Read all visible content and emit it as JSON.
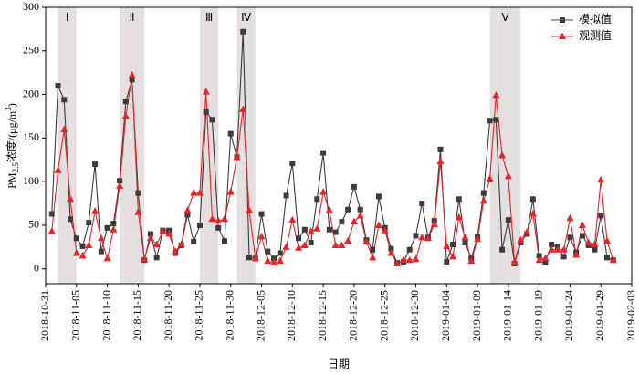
{
  "chart_data": {
    "type": "line",
    "ylabel": {
      "main": "PM",
      "sub": "2.5",
      "rest": "浓度/(μg/m",
      "sup": "3",
      "end": ")"
    },
    "xlabel": "日期",
    "x": [
      "2018-11-01",
      "2018-11-02",
      "2018-11-03",
      "2018-11-04",
      "2018-11-05",
      "2018-11-06",
      "2018-11-07",
      "2018-11-08",
      "2018-11-09",
      "2018-11-10",
      "2018-11-11",
      "2018-11-12",
      "2018-11-13",
      "2018-11-14",
      "2018-11-15",
      "2018-11-16",
      "2018-11-17",
      "2018-11-18",
      "2018-11-19",
      "2018-11-20",
      "2018-11-21",
      "2018-11-22",
      "2018-11-23",
      "2018-11-24",
      "2018-11-25",
      "2018-11-26",
      "2018-11-27",
      "2018-11-28",
      "2018-11-29",
      "2018-11-30",
      "2018-12-01",
      "2018-12-02",
      "2018-12-03",
      "2018-12-04",
      "2018-12-05",
      "2018-12-06",
      "2018-12-07",
      "2018-12-08",
      "2018-12-09",
      "2018-12-10",
      "2018-12-11",
      "2018-12-12",
      "2018-12-13",
      "2018-12-14",
      "2018-12-15",
      "2018-12-16",
      "2018-12-17",
      "2018-12-18",
      "2018-12-19",
      "2018-12-20",
      "2018-12-21",
      "2018-12-22",
      "2018-12-23",
      "2018-12-24",
      "2018-12-25",
      "2018-12-26",
      "2018-12-27",
      "2018-12-28",
      "2018-12-29",
      "2018-12-30",
      "2018-12-31",
      "2019-01-01",
      "2019-01-02",
      "2019-01-03",
      "2019-01-04",
      "2019-01-05",
      "2019-01-06",
      "2019-01-07",
      "2019-01-08",
      "2019-01-09",
      "2019-01-10",
      "2019-01-11",
      "2019-01-12",
      "2019-01-13",
      "2019-01-14",
      "2019-01-15",
      "2019-01-16",
      "2019-01-17",
      "2019-01-18",
      "2019-01-19",
      "2019-01-20",
      "2019-01-21",
      "2019-01-22",
      "2019-01-23",
      "2019-01-24",
      "2019-01-25",
      "2019-01-26",
      "2019-01-27",
      "2019-01-28",
      "2019-01-29",
      "2019-01-30",
      "2019-01-31"
    ],
    "series": [
      {
        "name": "模拟值",
        "color": "#3c3c3c",
        "marker": "square",
        "values": [
          63,
          210,
          194,
          57,
          35,
          26,
          53,
          120,
          20,
          47,
          52,
          101,
          192,
          217,
          87,
          10,
          40,
          13,
          44,
          44,
          18,
          27,
          62,
          31,
          50,
          180,
          171,
          47,
          32,
          155,
          128,
          272,
          13,
          12,
          63,
          20,
          12,
          18,
          84,
          121,
          35,
          45,
          30,
          80,
          133,
          45,
          42,
          54,
          68,
          94,
          68,
          33,
          22,
          83,
          47,
          23,
          7,
          8,
          22,
          38,
          75,
          36,
          55,
          137,
          8,
          28,
          80,
          30,
          12,
          37,
          87,
          170,
          171,
          22,
          56,
          6,
          30,
          40,
          80,
          15,
          8,
          28,
          25,
          14,
          36,
          19,
          38,
          27,
          22,
          61,
          13,
          10
        ]
      },
      {
        "name": "观测值",
        "color": "#e8242b",
        "marker": "triangle",
        "values": [
          43,
          113,
          160,
          80,
          18,
          15,
          27,
          66,
          35,
          12,
          45,
          95,
          175,
          222,
          65,
          11,
          35,
          28,
          43,
          40,
          20,
          28,
          67,
          87,
          87,
          203,
          57,
          55,
          57,
          88,
          128,
          183,
          67,
          12,
          37,
          9,
          7,
          9,
          25,
          56,
          24,
          27,
          43,
          46,
          88,
          67,
          27,
          27,
          32,
          54,
          61,
          31,
          13,
          50,
          44,
          18,
          6,
          10,
          10,
          11,
          36,
          35,
          51,
          123,
          26,
          14,
          59,
          36,
          9,
          34,
          78,
          103,
          199,
          130,
          106,
          8,
          33,
          42,
          63,
          10,
          12,
          22,
          22,
          22,
          58,
          16,
          50,
          30,
          28,
          102,
          32,
          10
        ]
      }
    ],
    "periods": [
      {
        "label": "Ⅰ",
        "start": "2018-11-02",
        "end": "2018-11-05"
      },
      {
        "label": "Ⅱ",
        "start": "2018-11-12",
        "end": "2018-11-16"
      },
      {
        "label": "Ⅲ",
        "start": "2018-11-25",
        "end": "2018-11-28"
      },
      {
        "label": "Ⅳ",
        "start": "2018-12-01",
        "end": "2018-12-04"
      },
      {
        "label": "Ⅴ",
        "start": "2019-01-11",
        "end": "2019-01-16"
      }
    ],
    "period_color": "#e5e0df",
    "xlim": [
      "2018-10-31",
      "2019-02-03"
    ],
    "xticks": [
      "2018-10-31",
      "2018-11-05",
      "2018-11-10",
      "2018-11-15",
      "2018-11-20",
      "2018-11-25",
      "2018-11-30",
      "2018-12-05",
      "2018-12-10",
      "2018-12-15",
      "2018-12-20",
      "2018-12-25",
      "2018-12-30",
      "2019-01-04",
      "2019-01-09",
      "2019-01-14",
      "2019-01-19",
      "2019-01-24",
      "2019-01-29",
      "2019-02-03"
    ],
    "ylim": [
      -17,
      300
    ],
    "yticks": [
      0,
      50,
      100,
      150,
      200,
      250,
      300
    ],
    "legend": "upper right"
  }
}
